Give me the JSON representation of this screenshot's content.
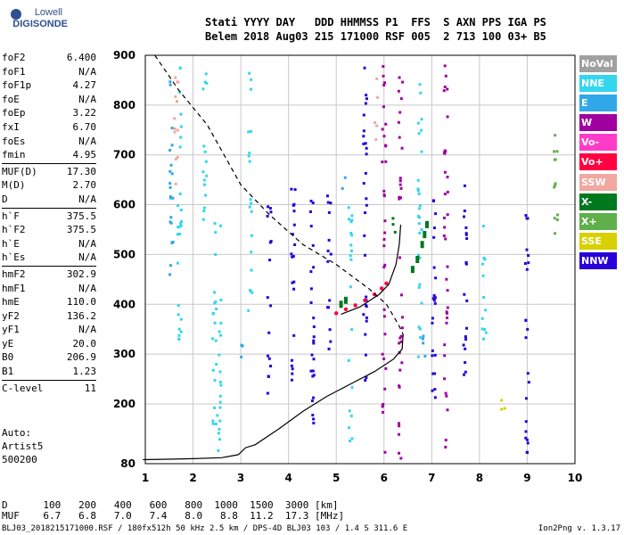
{
  "logo": {
    "line1": "Lowell",
    "line2": "DIGISONDE"
  },
  "header": {
    "line1": "Stati YYYY DAY   DDD HHMMSS P1  FFS  S AXN PPS IGA PS",
    "line2": "Belem 2018 Aug03 215 171000 RSF 005  2 713 100 03+ B5"
  },
  "params": [
    {
      "name": "foF2",
      "value": "6.400"
    },
    {
      "name": "foF1",
      "value": "N/A"
    },
    {
      "name": "foF1p",
      "value": "4.27"
    },
    {
      "name": "foE",
      "value": "N/A"
    },
    {
      "name": "foEp",
      "value": "3.22"
    },
    {
      "name": "fxI",
      "value": "6.70"
    },
    {
      "name": "foEs",
      "value": "N/A"
    },
    {
      "name": "fmin",
      "value": "4.95"
    },
    {
      "name": "MUF(D)",
      "value": "17.30"
    },
    {
      "name": "M(D)",
      "value": "2.70"
    },
    {
      "name": "D",
      "value": "N/A"
    },
    {
      "name": "h`F",
      "value": "375.5"
    },
    {
      "name": "h`F2",
      "value": "375.5"
    },
    {
      "name": "h`E",
      "value": "N/A"
    },
    {
      "name": "h`Es",
      "value": "N/A"
    },
    {
      "name": "hmF2",
      "value": "302.9"
    },
    {
      "name": "hmF1",
      "value": "N/A"
    },
    {
      "name": "hmE",
      "value": "110.0"
    },
    {
      "name": "yF2",
      "value": "136.2"
    },
    {
      "name": "yF1",
      "value": "N/A"
    },
    {
      "name": "yE",
      "value": "20.0"
    },
    {
      "name": "B0",
      "value": "206.9"
    },
    {
      "name": "B1",
      "value": "1.23"
    },
    {
      "name": "C-level",
      "value": "11"
    }
  ],
  "auto": {
    "line1": "Auto:",
    "line2": "Artist5",
    "line3": "500200"
  },
  "legend": [
    {
      "label": "NoVal",
      "color": "#a0a0a0"
    },
    {
      "label": "NNE",
      "color": "#33d6ee"
    },
    {
      "label": "E",
      "color": "#30a8e8"
    },
    {
      "label": "W",
      "color": "#a0009f"
    },
    {
      "label": "Vo-",
      "color": "#ff3cc8"
    },
    {
      "label": "Vo+",
      "color": "#ff0040"
    },
    {
      "label": "SSW",
      "color": "#f0a8a0"
    },
    {
      "label": "X-",
      "color": "#00781e"
    },
    {
      "label": "X+",
      "color": "#5fb04a"
    },
    {
      "label": "SSE",
      "color": "#d8d000"
    },
    {
      "label": "NNW",
      "color": "#2800d8"
    }
  ],
  "table": {
    "d_label": "D",
    "d_values": [
      "100",
      "200",
      "400",
      "600",
      "800",
      "1000",
      "1500",
      "3000"
    ],
    "d_unit": "[km]",
    "muf_label": "MUF",
    "muf_values": [
      "6.7",
      "6.8",
      "7.0",
      "7.4",
      "8.0",
      "8.8",
      "11.2",
      "17.3"
    ],
    "muf_unit": "[MHz]"
  },
  "footer": "BLJ03_2018215171000.RSF / 180fx512h 50 kHz 2.5 km / DPS-4D BLJ03 103 / 1.4 S 311.6 E",
  "version": "Ion2Png v. 1.3.17",
  "chart_data": {
    "type": "scatter",
    "xlim": [
      1,
      10
    ],
    "ylim": [
      80,
      900
    ],
    "xticks": [
      "1",
      "2",
      "3",
      "4",
      "5",
      "6",
      "7",
      "8",
      "9",
      "10"
    ],
    "yticks": [
      "80",
      "200",
      "300",
      "400",
      "500",
      "600",
      "700",
      "800",
      "900"
    ],
    "grid": true,
    "ytick_values": [
      80,
      200,
      300,
      400,
      500,
      600,
      700,
      800,
      900
    ],
    "xtick_values": [
      1,
      2,
      3,
      4,
      5,
      6,
      7,
      8,
      9,
      10
    ],
    "profile_solid": [
      [
        0.95,
        88
      ],
      [
        1.5,
        89
      ],
      [
        2.0,
        90
      ],
      [
        2.6,
        92
      ],
      [
        2.95,
        98
      ],
      [
        3.1,
        112
      ],
      [
        3.3,
        118
      ],
      [
        3.8,
        150
      ],
      [
        4.3,
        185
      ],
      [
        4.8,
        215
      ],
      [
        5.3,
        240
      ],
      [
        5.8,
        265
      ],
      [
        6.2,
        290
      ],
      [
        6.38,
        310
      ],
      [
        6.4,
        340
      ]
    ],
    "profile_solid_upper": [
      [
        5.1,
        380
      ],
      [
        5.5,
        395
      ],
      [
        5.9,
        420
      ],
      [
        6.1,
        440
      ],
      [
        6.25,
        480
      ],
      [
        6.32,
        520
      ],
      [
        6.35,
        560
      ]
    ],
    "profile_dashed": [
      [
        1.2,
        900
      ],
      [
        1.7,
        830
      ],
      [
        2.3,
        760
      ],
      [
        3.0,
        640
      ],
      [
        3.6,
        580
      ],
      [
        4.3,
        520
      ],
      [
        5.0,
        480
      ],
      [
        5.7,
        430
      ],
      [
        6.05,
        400
      ],
      [
        6.3,
        360
      ],
      [
        6.4,
        340
      ]
    ],
    "trace_vo_plus": [
      [
        5.0,
        382
      ],
      [
        5.2,
        390
      ],
      [
        5.4,
        398
      ],
      [
        5.6,
        408
      ],
      [
        5.8,
        420
      ],
      [
        5.95,
        432
      ],
      [
        6.05,
        442
      ]
    ],
    "trace_x_minus": [
      [
        5.1,
        400
      ],
      [
        5.2,
        408
      ],
      [
        6.6,
        470
      ],
      [
        6.7,
        490
      ],
      [
        6.8,
        520
      ],
      [
        6.85,
        540
      ],
      [
        6.9,
        560
      ]
    ]
  }
}
